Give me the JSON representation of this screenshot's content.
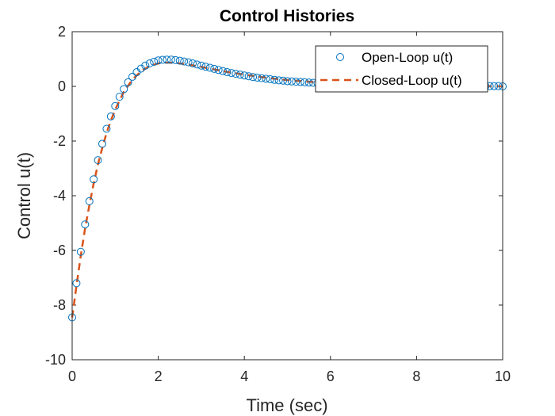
{
  "chart_data": {
    "type": "line",
    "title": "Control Histories",
    "xlabel": "Time (sec)",
    "ylabel": "Control u(t)",
    "xlim": [
      0,
      10
    ],
    "ylim": [
      -10,
      2
    ],
    "xticks": [
      0,
      2,
      4,
      6,
      8,
      10
    ],
    "yticks": [
      -10,
      -8,
      -6,
      -4,
      -2,
      0,
      2
    ],
    "grid": false,
    "legend_position": "top-right",
    "series": [
      {
        "name": "Open-Loop u(t)",
        "style": "markers-circle",
        "color": "#0072BD",
        "x": [
          0,
          0.1,
          0.2,
          0.3,
          0.4,
          0.5,
          0.6,
          0.7,
          0.8,
          0.9,
          1.0,
          1.1,
          1.2,
          1.3,
          1.4,
          1.5,
          1.6,
          1.7,
          1.8,
          1.9,
          2.0,
          2.1,
          2.2,
          2.3,
          2.4,
          2.5,
          2.6,
          2.7,
          2.8,
          2.9,
          3.0,
          3.1,
          3.2,
          3.3,
          3.4,
          3.5,
          3.6,
          3.7,
          3.8,
          3.9,
          4.0,
          4.1,
          4.2,
          4.3,
          4.4,
          4.5,
          4.6,
          4.7,
          4.8,
          4.9,
          5.0,
          5.1,
          5.2,
          5.3,
          5.4,
          5.5,
          5.6,
          5.7,
          5.8,
          5.9,
          6.0,
          6.1,
          6.2,
          6.3,
          6.4,
          6.5,
          6.6,
          6.7,
          6.8,
          6.9,
          7.0,
          7.1,
          7.2,
          7.3,
          7.4,
          7.5,
          7.6,
          7.7,
          7.8,
          7.9,
          8.0,
          8.1,
          8.2,
          8.3,
          8.4,
          8.5,
          8.6,
          8.7,
          8.8,
          8.9,
          9.0,
          9.1,
          9.2,
          9.3,
          9.4,
          9.5,
          9.6,
          9.7,
          9.8,
          9.9,
          10.0
        ],
        "y": [
          -8.45,
          -7.2,
          -6.05,
          -5.05,
          -4.2,
          -3.4,
          -2.7,
          -2.1,
          -1.55,
          -1.1,
          -0.72,
          -0.38,
          -0.1,
          0.15,
          0.35,
          0.52,
          0.65,
          0.76,
          0.84,
          0.9,
          0.95,
          0.97,
          0.98,
          0.98,
          0.96,
          0.94,
          0.91,
          0.88,
          0.84,
          0.8,
          0.76,
          0.72,
          0.68,
          0.64,
          0.6,
          0.56,
          0.52,
          0.49,
          0.46,
          0.43,
          0.4,
          0.37,
          0.34,
          0.32,
          0.3,
          0.28,
          0.26,
          0.24,
          0.22,
          0.21,
          0.19,
          0.18,
          0.17,
          0.16,
          0.15,
          0.14,
          0.13,
          0.12,
          0.11,
          0.1,
          0.1,
          0.09,
          0.09,
          0.08,
          0.08,
          0.07,
          0.07,
          0.06,
          0.06,
          0.06,
          0.05,
          0.05,
          0.05,
          0.04,
          0.04,
          0.04,
          0.04,
          0.03,
          0.03,
          0.03,
          0.03,
          0.03,
          0.02,
          0.02,
          0.02,
          0.02,
          0.02,
          0.02,
          0.02,
          0.01,
          0.01,
          0.01,
          0.01,
          0.01,
          0.01,
          0.01,
          0.01,
          0.01,
          0.01,
          0.01,
          0.0
        ]
      },
      {
        "name": "Closed-Loop u(t)",
        "style": "dashed-line",
        "color": "#D95319",
        "x": [
          0,
          0.1,
          0.2,
          0.3,
          0.4,
          0.5,
          0.6,
          0.7,
          0.8,
          0.9,
          1.0,
          1.2,
          1.4,
          1.6,
          1.8,
          2.0,
          2.2,
          2.4,
          2.6,
          2.8,
          3.0,
          3.2,
          3.4,
          3.6,
          3.8,
          4.0,
          4.3,
          4.6,
          5.0,
          5.5,
          6.0,
          6.5,
          7.0,
          7.5,
          8.0,
          8.5,
          9.0,
          9.5,
          10.0
        ],
        "y": [
          -8.45,
          -7.3,
          -6.2,
          -5.2,
          -4.35,
          -3.55,
          -2.85,
          -2.25,
          -1.7,
          -1.25,
          -0.85,
          -0.2,
          0.25,
          0.55,
          0.74,
          0.84,
          0.87,
          0.86,
          0.82,
          0.77,
          0.71,
          0.65,
          0.59,
          0.53,
          0.48,
          0.43,
          0.36,
          0.3,
          0.23,
          0.17,
          0.12,
          0.09,
          0.07,
          0.05,
          0.04,
          0.03,
          0.02,
          0.01,
          0.0
        ]
      }
    ]
  }
}
